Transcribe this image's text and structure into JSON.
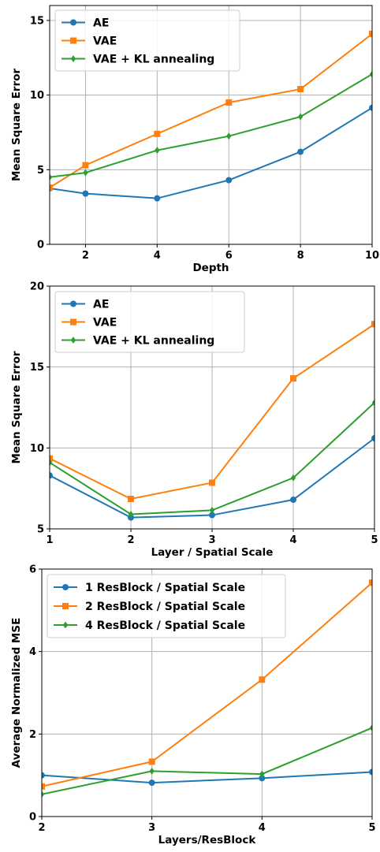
{
  "chart_data": [
    {
      "type": "line",
      "title": "",
      "xlabel": "Depth",
      "ylabel": "Mean Square Error",
      "xlim": [
        1,
        10
      ],
      "ylim": [
        0,
        16
      ],
      "xticks": [
        2,
        4,
        6,
        8,
        10
      ],
      "yticks": [
        0,
        5,
        10,
        15
      ],
      "grid": true,
      "legend": "top-left",
      "x": [
        1,
        2,
        4,
        6,
        8,
        10
      ],
      "series": [
        {
          "name": "AE",
          "color": "#1f77b4",
          "marker": "circle",
          "values": [
            3.75,
            3.4,
            3.08,
            4.3,
            6.2,
            9.15
          ]
        },
        {
          "name": "VAE",
          "color": "#ff7f0e",
          "marker": "square",
          "values": [
            3.8,
            5.3,
            7.4,
            9.5,
            10.4,
            14.1
          ]
        },
        {
          "name": "VAE + KL annealing",
          "color": "#2ca02c",
          "marker": "diamond",
          "values": [
            4.5,
            4.8,
            6.3,
            7.25,
            8.55,
            11.4
          ]
        }
      ]
    },
    {
      "type": "line",
      "title": "",
      "xlabel": "Layer / Spatial Scale",
      "ylabel": "Mean Square Error",
      "xlim": [
        1,
        5
      ],
      "ylim": [
        5,
        20
      ],
      "xticks": [
        1,
        2,
        3,
        4,
        5
      ],
      "yticks": [
        5,
        10,
        15,
        20
      ],
      "grid": true,
      "legend": "top-left",
      "x": [
        1,
        2,
        3,
        4,
        5
      ],
      "series": [
        {
          "name": "AE",
          "color": "#1f77b4",
          "marker": "circle",
          "values": [
            8.3,
            5.7,
            5.85,
            6.8,
            10.6
          ]
        },
        {
          "name": "VAE",
          "color": "#ff7f0e",
          "marker": "square",
          "values": [
            9.35,
            6.85,
            7.85,
            14.3,
            17.65
          ]
        },
        {
          "name": "VAE + KL annealing",
          "color": "#2ca02c",
          "marker": "diamond",
          "values": [
            9.1,
            5.9,
            6.15,
            8.15,
            12.8
          ]
        }
      ]
    },
    {
      "type": "line",
      "title": "",
      "xlabel": "Layers/ResBlock",
      "ylabel": "Average Normalized MSE",
      "xlim": [
        2,
        5
      ],
      "ylim": [
        0,
        6
      ],
      "xticks": [
        2,
        3,
        4,
        5
      ],
      "yticks": [
        0,
        2,
        4,
        6
      ],
      "grid": true,
      "legend": "top-left",
      "x": [
        2,
        3,
        4,
        5
      ],
      "series": [
        {
          "name": "1 ResBlock / Spatial Scale",
          "color": "#1f77b4",
          "marker": "circle",
          "values": [
            1.0,
            0.82,
            0.93,
            1.08
          ]
        },
        {
          "name": "2 ResBlock / Spatial Scale",
          "color": "#ff7f0e",
          "marker": "square",
          "values": [
            0.73,
            1.33,
            3.32,
            5.67
          ]
        },
        {
          "name": "4 ResBlock / Spatial Scale",
          "color": "#2ca02c",
          "marker": "diamond",
          "values": [
            0.54,
            1.1,
            1.03,
            2.15
          ]
        }
      ]
    }
  ]
}
